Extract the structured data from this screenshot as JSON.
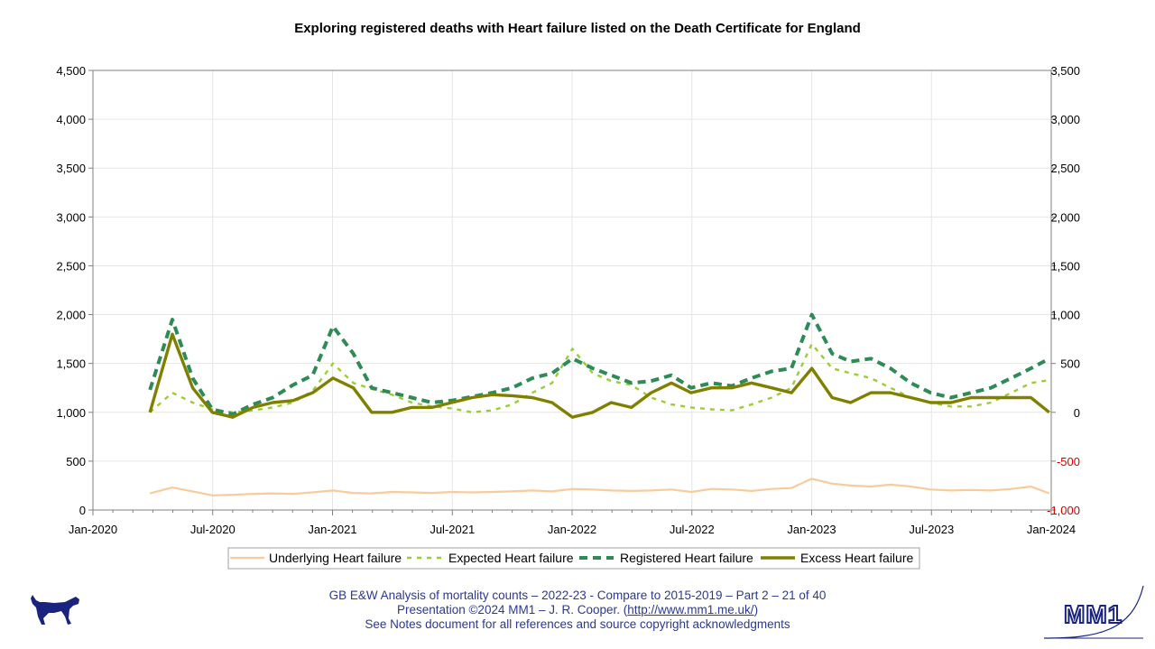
{
  "chart_data": {
    "type": "line",
    "title": "Exploring registered deaths with Heart failure listed on the Death Certificate for England",
    "x_ticks": [
      "Jan-2020",
      "Jul-2020",
      "Jan-2021",
      "Jul-2021",
      "Jan-2022",
      "Jul-2022",
      "Jan-2023",
      "Jul-2023",
      "Jan-2024"
    ],
    "y_left_ticks": [
      "0",
      "500",
      "1,000",
      "1,500",
      "2,000",
      "2,500",
      "3,000",
      "3,500",
      "4,000",
      "4,500"
    ],
    "y_right_ticks": [
      "-1,000",
      "-500",
      "0",
      "500",
      "1,000",
      "1,500",
      "2,000",
      "2,500",
      "3,000",
      "3,500"
    ],
    "ylim_left": [
      0,
      4500
    ],
    "ylim_right": [
      -1000,
      3500
    ],
    "xlim": [
      "2020-01-01",
      "2024-01-01"
    ],
    "grid": true,
    "legend_position": "bottom",
    "x_sample_dates": [
      "2020-03-28",
      "2020-05-01",
      "2020-06-01",
      "2020-07-01",
      "2020-08-01",
      "2020-09-01",
      "2020-10-01",
      "2020-11-01",
      "2020-12-01",
      "2021-01-01",
      "2021-02-01",
      "2021-03-01",
      "2021-04-01",
      "2021-05-01",
      "2021-06-01",
      "2021-07-01",
      "2021-08-01",
      "2021-09-01",
      "2021-10-01",
      "2021-11-01",
      "2021-12-01",
      "2022-01-01",
      "2022-02-01",
      "2022-03-01",
      "2022-04-01",
      "2022-05-01",
      "2022-06-01",
      "2022-07-01",
      "2022-08-01",
      "2022-09-01",
      "2022-10-01",
      "2022-11-01",
      "2022-12-01",
      "2023-01-01",
      "2023-02-01",
      "2023-03-01",
      "2023-04-01",
      "2023-05-01",
      "2023-06-01",
      "2023-07-01",
      "2023-08-01",
      "2023-09-01",
      "2023-10-01",
      "2023-11-01",
      "2023-12-01",
      "2023-12-29"
    ],
    "series": [
      {
        "name": "Underlying Heart failure",
        "axis": "left",
        "color": "#f8cb9c",
        "style": "solid",
        "values": [
          170,
          230,
          190,
          150,
          155,
          165,
          170,
          165,
          180,
          200,
          175,
          170,
          185,
          180,
          175,
          185,
          180,
          185,
          190,
          200,
          190,
          215,
          210,
          200,
          195,
          200,
          210,
          185,
          215,
          210,
          195,
          215,
          225,
          320,
          270,
          250,
          240,
          260,
          240,
          210,
          200,
          205,
          200,
          215,
          240,
          170
        ]
      },
      {
        "name": "Expected Heart failure",
        "axis": "left",
        "color": "#9acd32",
        "style": "dotted",
        "values": [
          1000,
          1200,
          1100,
          1030,
          1000,
          1020,
          1050,
          1100,
          1220,
          1500,
          1300,
          1240,
          1180,
          1100,
          1060,
          1040,
          1000,
          1020,
          1080,
          1200,
          1300,
          1650,
          1400,
          1320,
          1280,
          1150,
          1080,
          1050,
          1030,
          1020,
          1080,
          1150,
          1250,
          1700,
          1450,
          1400,
          1350,
          1250,
          1150,
          1100,
          1060,
          1060,
          1100,
          1200,
          1300,
          1330
        ]
      },
      {
        "name": "Registered Heart failure",
        "axis": "left",
        "color": "#2e8b57",
        "style": "dashed",
        "values": [
          1230,
          1950,
          1350,
          1030,
          980,
          1080,
          1150,
          1280,
          1380,
          1880,
          1600,
          1250,
          1200,
          1150,
          1100,
          1120,
          1160,
          1200,
          1250,
          1350,
          1400,
          1550,
          1450,
          1380,
          1300,
          1320,
          1380,
          1250,
          1300,
          1270,
          1350,
          1420,
          1450,
          2000,
          1600,
          1520,
          1550,
          1450,
          1300,
          1200,
          1150,
          1200,
          1250,
          1350,
          1450,
          1550
        ]
      },
      {
        "name": "Excess Heart failure",
        "axis": "right",
        "color": "#808000",
        "style": "solid",
        "values": [
          0,
          800,
          250,
          0,
          -50,
          50,
          100,
          120,
          200,
          350,
          250,
          0,
          0,
          50,
          50,
          100,
          150,
          180,
          170,
          150,
          100,
          -50,
          0,
          100,
          50,
          200,
          300,
          200,
          250,
          250,
          300,
          250,
          200,
          450,
          150,
          100,
          200,
          200,
          150,
          100,
          100,
          150,
          150,
          150,
          150,
          0
        ]
      }
    ]
  },
  "footer": {
    "line1": "GB E&W Analysis of mortality counts – 2022-23 - Compare to 2015-2019 – Part 2 – 21 of 40",
    "line2_prefix": "Presentation ©2024 MM1 – J. R. Cooper. (",
    "line2_link": "http://www.mm1.me.uk/",
    "line2_suffix": ")",
    "line3": "See Notes document for all references and source copyright acknowledgments"
  },
  "logo_text": "MM1",
  "colors": {
    "axis_right_negative": "#cc0000",
    "footer_text": "#2b3990",
    "grid": "#e6e6e6"
  }
}
